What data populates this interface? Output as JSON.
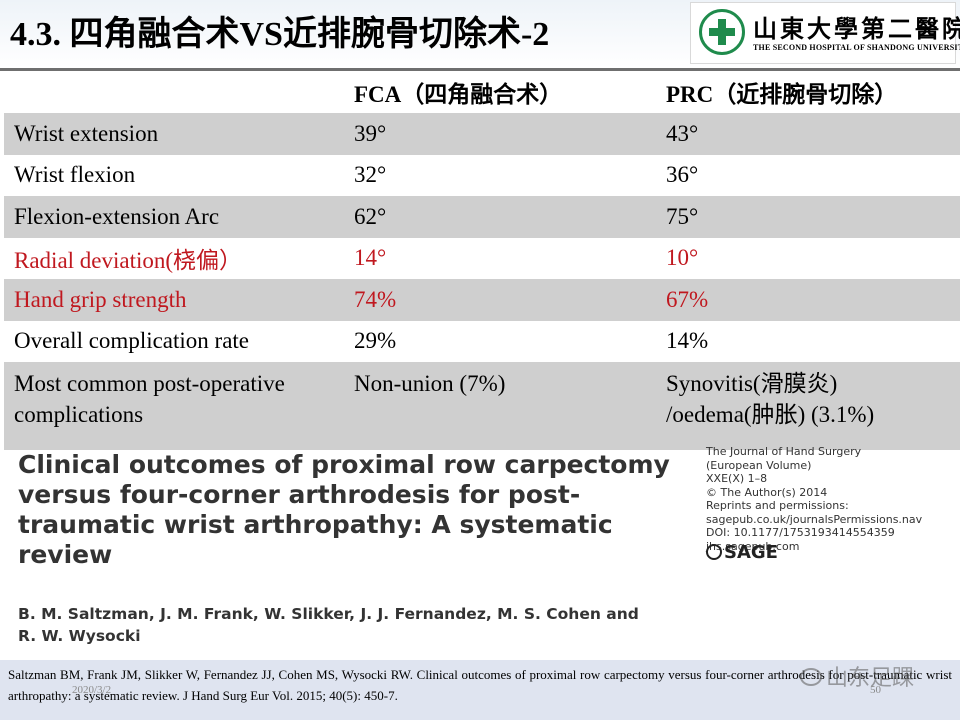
{
  "slide": {
    "title": "4.3. 四角融合术VS近排腕骨切除术-2"
  },
  "logo": {
    "name_cn": "山東大學第二醫院",
    "name_en": "THE SECOND HOSPITAL OF SHANDONG UNIVERSITY",
    "icon": "hospital-cross-emblem-icon",
    "accent_color": "#1f8b4c"
  },
  "table": {
    "headers": [
      "",
      "FCA（四角融合术）",
      "PRC（近排腕骨切除）"
    ],
    "rows": [
      {
        "label": "Wrist extension",
        "fca": "39°",
        "prc": "43°"
      },
      {
        "label": "Wrist flexion",
        "fca": "32°",
        "prc": "36°"
      },
      {
        "label": "Flexion-extension Arc",
        "fca": "62°",
        "prc": "75°"
      },
      {
        "label": "Radial deviation(桡偏）",
        "fca": "14°",
        "prc": "10°"
      },
      {
        "label": "Hand grip strength",
        "fca": "74%",
        "prc": "67%"
      },
      {
        "label": "Overall complication rate",
        "fca": "29%",
        "prc": "14%"
      },
      {
        "label": "Most common post-operative complications",
        "fca": "Non-union (7%)",
        "prc": "Synovitis(滑膜炎) /oedema(肿胀) (3.1%)"
      }
    ],
    "highlight_color": "#c0181f",
    "shade_color": "#cfcfcf"
  },
  "paper": {
    "title": "Clinical outcomes of proximal row carpectomy versus four-corner arthrodesis for post-traumatic wrist arthropathy: A systematic review",
    "authors": "B. M. Saltzman, J. M. Frank, W. Slikker, J. J. Fernandez, M. S. Cohen and R. W. Wysocki",
    "journal_lines": [
      "The Journal of Hand Surgery",
      "(European Volume)",
      "XXE(X) 1–8",
      "© The Author(s) 2014",
      "Reprints and permissions:",
      "sagepub.co.uk/journalsPermissions.nav",
      "DOI: 10.1177/1753193414554359",
      "jhs.sagepub.com"
    ],
    "publisher": "SAGE"
  },
  "citation": {
    "text": "Saltzman BM, Frank JM, Slikker W, Fernandez JJ, Cohen MS, Wysocki RW. Clinical outcomes of proximal row carpectomy versus four-corner arthrodesis for post-traumatic wrist arthropathy: a systematic review. J Hand Surg Eur Vol. 2015; 40(5): 450-7.",
    "date": "2020/3/2",
    "page": "50"
  },
  "watermark": {
    "text": "山东足踝",
    "icon": "wechat-icon"
  }
}
